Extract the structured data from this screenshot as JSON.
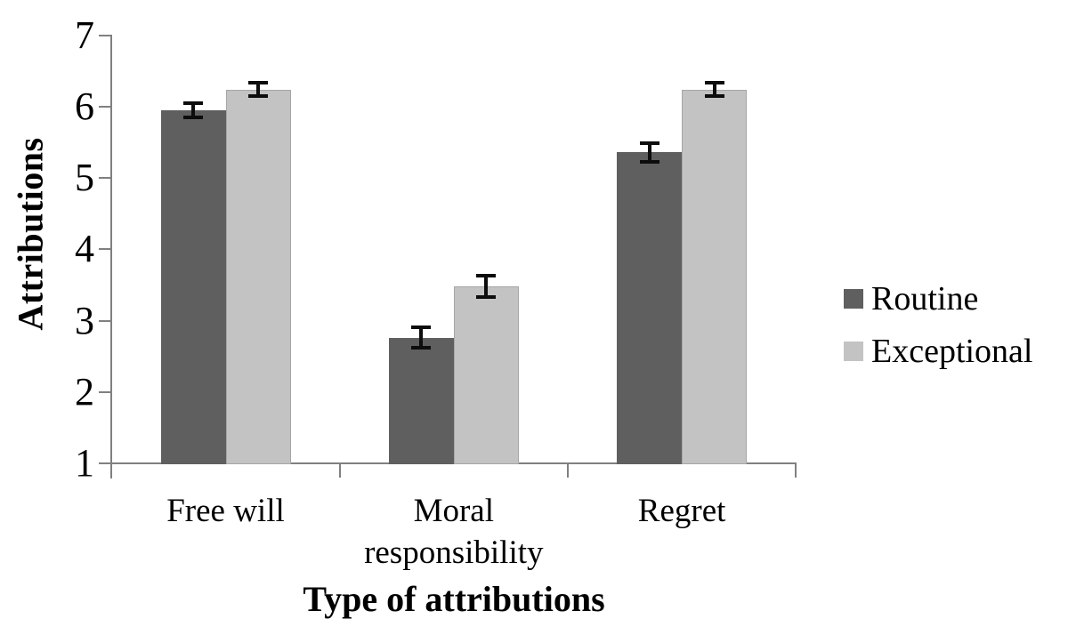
{
  "chart_data": {
    "type": "bar",
    "categories": [
      "Free will",
      "Moral responsibility",
      "Regret"
    ],
    "series": [
      {
        "name": "Routine",
        "color": "#5f5f5f",
        "values": [
          5.95,
          2.76,
          5.36
        ],
        "errors": [
          0.09,
          0.13,
          0.12
        ]
      },
      {
        "name": "Exceptional",
        "color": "#c3c3c3",
        "border_color": "#a6a6a6",
        "values": [
          6.24,
          3.48,
          6.24
        ],
        "errors": [
          0.08,
          0.14,
          0.08
        ]
      }
    ],
    "xlabel": "Type of attributions",
    "ylabel": "Attributions",
    "ylim": [
      1,
      7
    ],
    "yticks": [
      1,
      2,
      3,
      4,
      5,
      6,
      7
    ],
    "grid": false,
    "error_bars": true,
    "legend_position": "right",
    "axis_color": "#808080",
    "text_color": "#000000"
  }
}
